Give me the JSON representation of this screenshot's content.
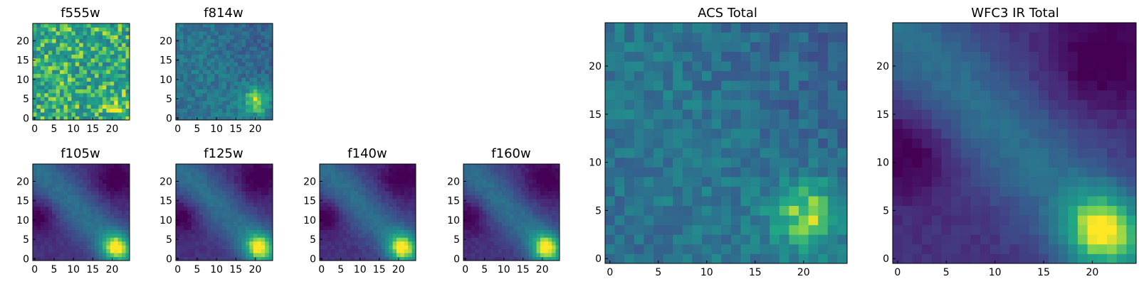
{
  "chart_data": [
    {
      "type": "heatmap",
      "title": "f555w",
      "size": 25,
      "xticks": [
        0,
        5,
        10,
        15,
        20
      ],
      "yticks": [
        0,
        5,
        10,
        15,
        20
      ],
      "xlim": [
        0,
        24
      ],
      "ylim": [
        0,
        24
      ],
      "colormap": "viridis",
      "pattern": "noise"
    },
    {
      "type": "heatmap",
      "title": "f814w",
      "size": 25,
      "xticks": [
        0,
        5,
        10,
        15,
        20
      ],
      "yticks": [
        0,
        5,
        10,
        15,
        20
      ],
      "xlim": [
        0,
        24
      ],
      "ylim": [
        0,
        24
      ],
      "colormap": "viridis",
      "pattern": "acs"
    },
    {
      "type": "heatmap",
      "title": "f105w",
      "size": 25,
      "xticks": [
        0,
        5,
        10,
        15,
        20
      ],
      "yticks": [
        0,
        5,
        10,
        15,
        20
      ],
      "xlim": [
        0,
        24
      ],
      "ylim": [
        0,
        24
      ],
      "colormap": "viridis",
      "pattern": "ir"
    },
    {
      "type": "heatmap",
      "title": "f125w",
      "size": 25,
      "xticks": [
        0,
        5,
        10,
        15,
        20
      ],
      "yticks": [
        0,
        5,
        10,
        15,
        20
      ],
      "xlim": [
        0,
        24
      ],
      "ylim": [
        0,
        24
      ],
      "colormap": "viridis",
      "pattern": "ir"
    },
    {
      "type": "heatmap",
      "title": "f140w",
      "size": 25,
      "xticks": [
        0,
        5,
        10,
        15,
        20
      ],
      "yticks": [
        0,
        5,
        10,
        15,
        20
      ],
      "xlim": [
        0,
        24
      ],
      "ylim": [
        0,
        24
      ],
      "colormap": "viridis",
      "pattern": "ir"
    },
    {
      "type": "heatmap",
      "title": "f160w",
      "size": 25,
      "xticks": [
        0,
        5,
        10,
        15,
        20
      ],
      "yticks": [
        0,
        5,
        10,
        15,
        20
      ],
      "xlim": [
        0,
        24
      ],
      "ylim": [
        0,
        24
      ],
      "colormap": "viridis",
      "pattern": "ir"
    },
    {
      "type": "heatmap",
      "title": "ACS Total",
      "size": 25,
      "xticks": [
        0,
        5,
        10,
        15,
        20
      ],
      "yticks": [
        0,
        5,
        10,
        15,
        20
      ],
      "xlim": [
        0,
        24
      ],
      "ylim": [
        0,
        24
      ],
      "colormap": "viridis",
      "pattern": "acs"
    },
    {
      "type": "heatmap",
      "title": "WFC3 IR Total",
      "size": 25,
      "xticks": [
        0,
        5,
        10,
        15,
        20
      ],
      "yticks": [
        0,
        5,
        10,
        15,
        20
      ],
      "xlim": [
        0,
        24
      ],
      "ylim": [
        0,
        24
      ],
      "colormap": "viridis",
      "pattern": "ir"
    }
  ]
}
